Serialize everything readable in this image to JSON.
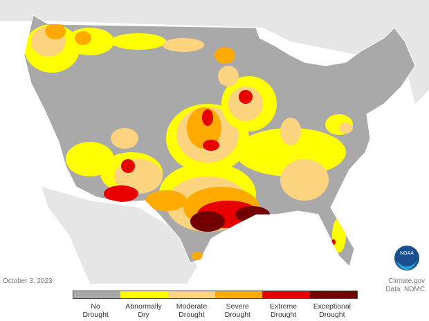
{
  "date": "October 3, 2023",
  "credit": "Climate.gov",
  "source": "Data: NDMC",
  "legend": [
    {
      "label": "No Drought",
      "color": "#a9a9a9"
    },
    {
      "label": "Abnormally Dry",
      "color": "#ffff00"
    },
    {
      "label": "Moderate Drought",
      "color": "#fcd37f"
    },
    {
      "label": "Severe Drought",
      "color": "#ffaa00"
    },
    {
      "label": "Extreme Drought",
      "color": "#e60000"
    },
    {
      "label": "Exceptional Drought",
      "color": "#730000"
    }
  ]
}
